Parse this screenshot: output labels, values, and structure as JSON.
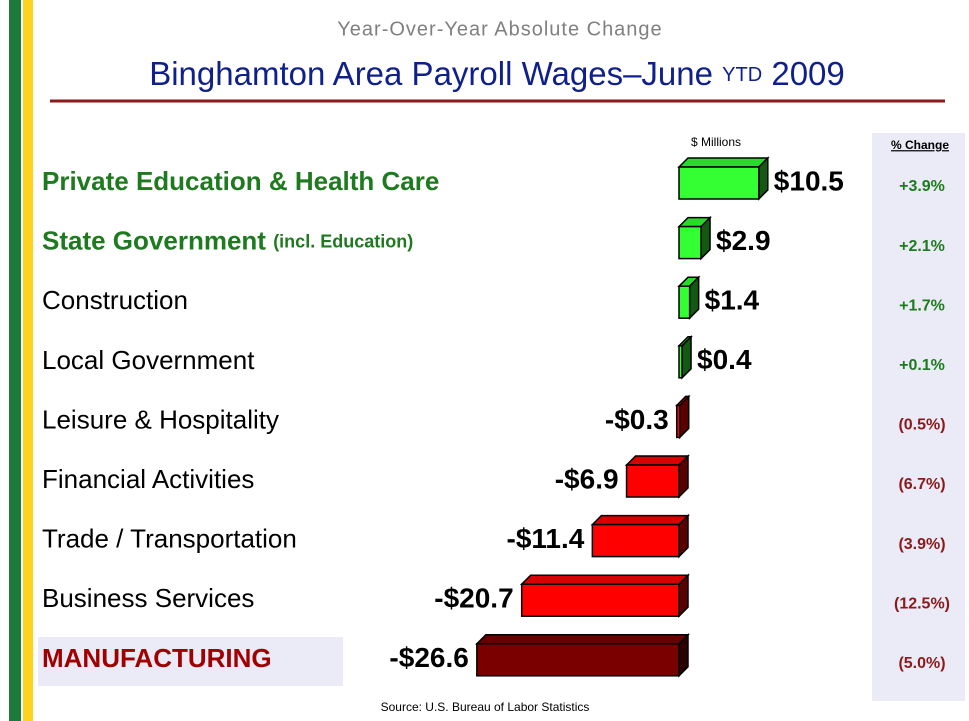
{
  "chart_data": {
    "type": "bar",
    "orientation": "horizontal",
    "subtitle": "Year-Over-Year Absolute Change",
    "title": "Binghamton Area Payroll Wages–June",
    "title_small": "YTD",
    "title_end": "2009",
    "unit_label": "$ Millions",
    "source": "Source:  U.S. Bureau of Labor Statistics",
    "categories": [
      "Private Education & Health Care",
      "State Government",
      "Construction",
      "Local Government",
      "Leisure & Hospitality",
      "Financial Activities",
      "Trade / Transportation",
      "Business Services",
      "MANUFACTURING"
    ],
    "category_note": "(incl. Education)",
    "values": [
      10.5,
      2.9,
      1.4,
      0.4,
      -0.3,
      -6.9,
      -11.4,
      -20.7,
      -26.6
    ],
    "value_labels": [
      "$10.5",
      "$2.9",
      "$1.4",
      "$0.4",
      "-$0.3",
      "-$6.9",
      "-$11.4",
      "-$20.7",
      "-$26.6"
    ],
    "colors": [
      "#33ff33",
      "#33ff33",
      "#33ff33",
      "#33ff33",
      "#ff0000",
      "#ff0000",
      "#ff0000",
      "#ff0000",
      "#7a0000"
    ],
    "label_colors": [
      "#1e7a1e",
      "#1e7a1e",
      "#000000",
      "#000000",
      "#000000",
      "#000000",
      "#000000",
      "#000000",
      "#a00000"
    ],
    "change_column": {
      "header": "% Change",
      "labels": [
        "+3.9%",
        "+2.1%",
        "+1.7%",
        "+0.1%",
        "(0.5%)",
        "(6.7%)",
        "(3.9%)",
        "(12.5%)",
        "(5.0%)"
      ],
      "colors": [
        "#1e7a1e",
        "#1e7a1e",
        "#1e7a1e",
        "#1e7a1e",
        "#8b1a1a",
        "#8b1a1a",
        "#8b1a1a",
        "#8b1a1a",
        "#8b1a1a"
      ]
    }
  }
}
